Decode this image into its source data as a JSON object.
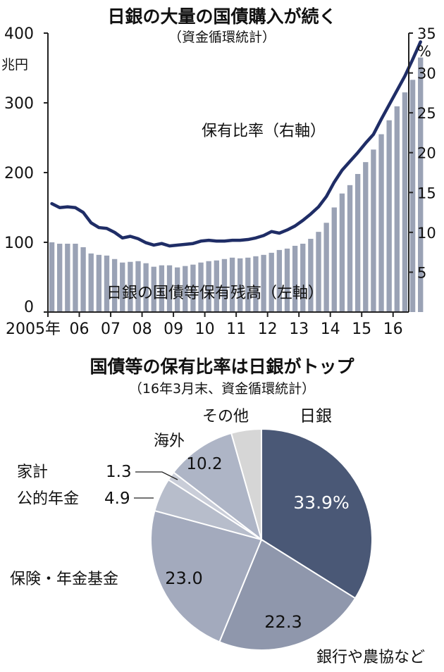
{
  "colors": {
    "bar": "#9aa2b5",
    "line": "#1f2d66",
    "axis": "#222222",
    "pie_nichigin": "#4a5876",
    "pie_banks": "#8f97ac",
    "pie_insurance": "#a3aabd",
    "pie_public": "#b7bdcb",
    "pie_household": "#c9cdd8",
    "pie_overseas": "#aeb5c6",
    "pie_other": "#d6d6d6",
    "pie_stroke": "#ffffff"
  },
  "chart_data": [
    {
      "type": "bar",
      "title": "日銀の大量の国債購入が続く",
      "subtitle": "（資金循環統計）",
      "left_unit": "兆円",
      "right_unit": "%",
      "x_tick_labels": [
        "2005年",
        "06",
        "07",
        "08",
        "09",
        "10",
        "11",
        "12",
        "13",
        "14",
        "15",
        "16"
      ],
      "left_axis": {
        "ylim": [
          0,
          400
        ],
        "ticks": [
          "0",
          "100",
          "200",
          "300",
          "400"
        ]
      },
      "right_axis": {
        "ylim": [
          0,
          35
        ],
        "ticks": [
          "5",
          "10",
          "15",
          "20",
          "25",
          "30",
          "35"
        ]
      },
      "x_start": 2005.0,
      "x_step": 0.25,
      "series": [
        {
          "name": "日銀の国債等保有残高（左軸）",
          "type": "bar",
          "axis": "left",
          "values": [
            100,
            98,
            98,
            98,
            93,
            84,
            82,
            81,
            76,
            71,
            72,
            73,
            70,
            65,
            67,
            67,
            64,
            66,
            68,
            71,
            73,
            74,
            76,
            78,
            77,
            78,
            80,
            82,
            85,
            89,
            91,
            95,
            98,
            105,
            115,
            128,
            150,
            170,
            182,
            198,
            215,
            233,
            255,
            275,
            295,
            315,
            333,
            365
          ]
        },
        {
          "name": "保有比率（右軸）",
          "type": "line",
          "axis": "right",
          "values": [
            13.6,
            13.1,
            13.2,
            13.1,
            12.5,
            11.2,
            10.6,
            10.5,
            10.0,
            9.3,
            9.5,
            9.2,
            8.7,
            8.4,
            8.6,
            8.3,
            8.4,
            8.5,
            8.6,
            8.9,
            9.0,
            8.9,
            8.9,
            9.0,
            9.0,
            9.1,
            9.3,
            9.6,
            10.1,
            9.9,
            10.3,
            10.8,
            11.5,
            12.3,
            13.2,
            14.5,
            16.3,
            17.8,
            18.9,
            20.0,
            21.2,
            22.3,
            24.2,
            26.0,
            27.8,
            29.6,
            31.7,
            33.9
          ]
        }
      ]
    },
    {
      "type": "pie",
      "title": "国債等の保有比率は日銀がトップ",
      "subtitle": "（16年3月末、資金循環統計）",
      "slices": [
        {
          "label": "日銀",
          "value": 33.9,
          "value_label": "33.9%"
        },
        {
          "label": "銀行や農協など",
          "value": 22.3,
          "value_label": "22.3"
        },
        {
          "label": "保険・年金基金",
          "value": 23.0,
          "value_label": "23.0"
        },
        {
          "label": "公的年金",
          "value": 4.9,
          "value_label": "4.9"
        },
        {
          "label": "家計",
          "value": 1.3,
          "value_label": "1.3"
        },
        {
          "label": "海外",
          "value": 10.2,
          "value_label": "10.2"
        },
        {
          "label": "その他",
          "value": 4.4,
          "value_label": ""
        }
      ]
    }
  ]
}
